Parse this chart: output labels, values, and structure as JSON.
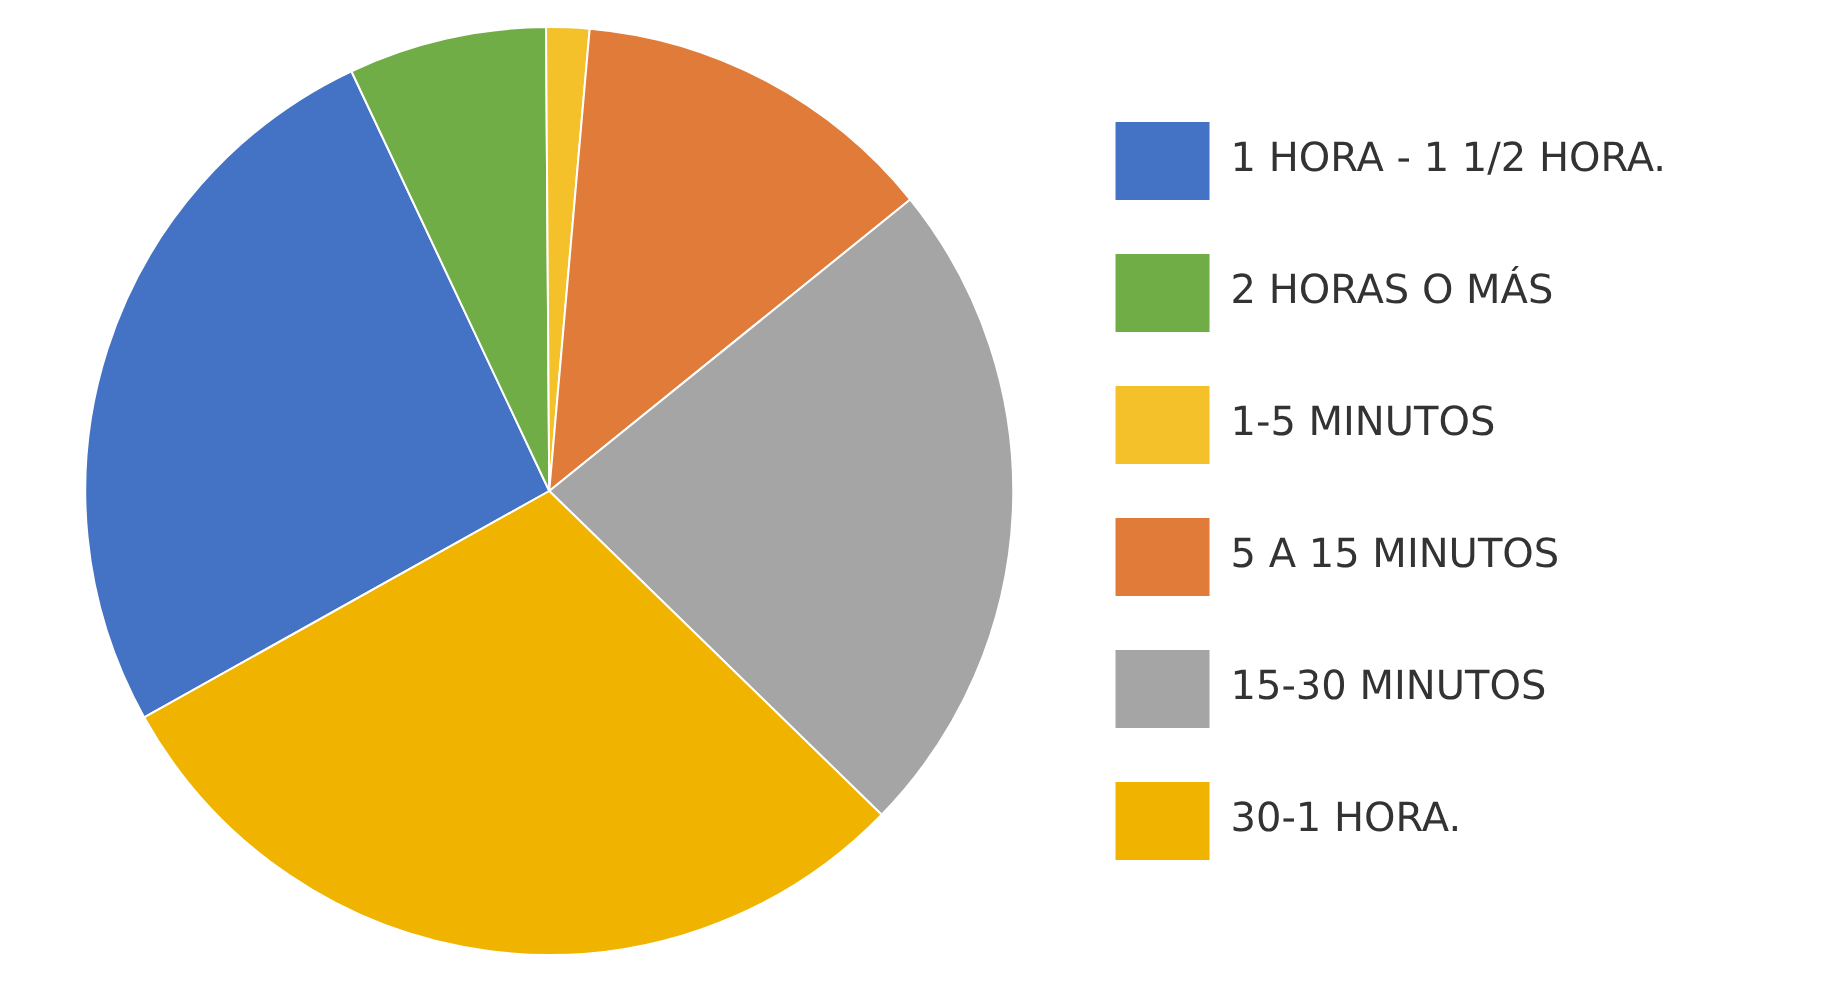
{
  "chart_data": {
    "type": "pie",
    "categories": [
      "1 HORA - 1 1/2 HORA.",
      "2 HORAS O MÁS",
      "1-5 MINUTOS",
      "5 A 15 MINUTOS",
      "15-30 MINUTOS",
      "30-1 HORA."
    ],
    "values": [
      26.1,
      6.9,
      1.5,
      12.8,
      23.1,
      29.6
    ],
    "colors": [
      "#4472c4",
      "#70ad47",
      "#f5c12a",
      "#e07b39",
      "#a5a5a5",
      "#f0b400"
    ],
    "legend": "right"
  }
}
